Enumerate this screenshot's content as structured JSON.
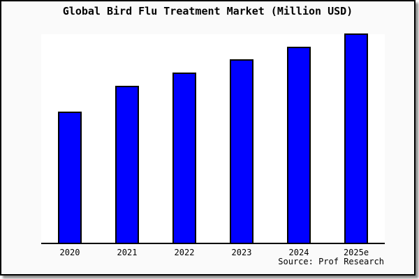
{
  "window": {
    "background_color": "#fafafa",
    "plot_background_color": "#ffffff",
    "border_color": "#000000",
    "shadow_color": "#777777"
  },
  "title": "Global Bird Flu Treatment Market (Million USD)",
  "source": "Source: Prof Research",
  "chart_data": {
    "type": "bar",
    "title": "Global Bird Flu Treatment Market (Million USD)",
    "categories": [
      "2020",
      "2021",
      "2022",
      "2023",
      "2024",
      "2025e"
    ],
    "values": [
      62.5,
      75,
      81.3,
      87.7,
      93.7,
      100
    ],
    "value_note": "y-axis has no ticks, labels or gridlines; values estimated as percent of tallest bar from pixel heights 188/225/244/263/281/300",
    "xlabel": "",
    "ylabel": "",
    "ylim": [
      0,
      100
    ],
    "grid": false,
    "legend": false,
    "bar_color": "#0000ff",
    "bar_border_color": "#000000",
    "axis_color": "#000000",
    "source_label": "Source: Prof Research"
  }
}
